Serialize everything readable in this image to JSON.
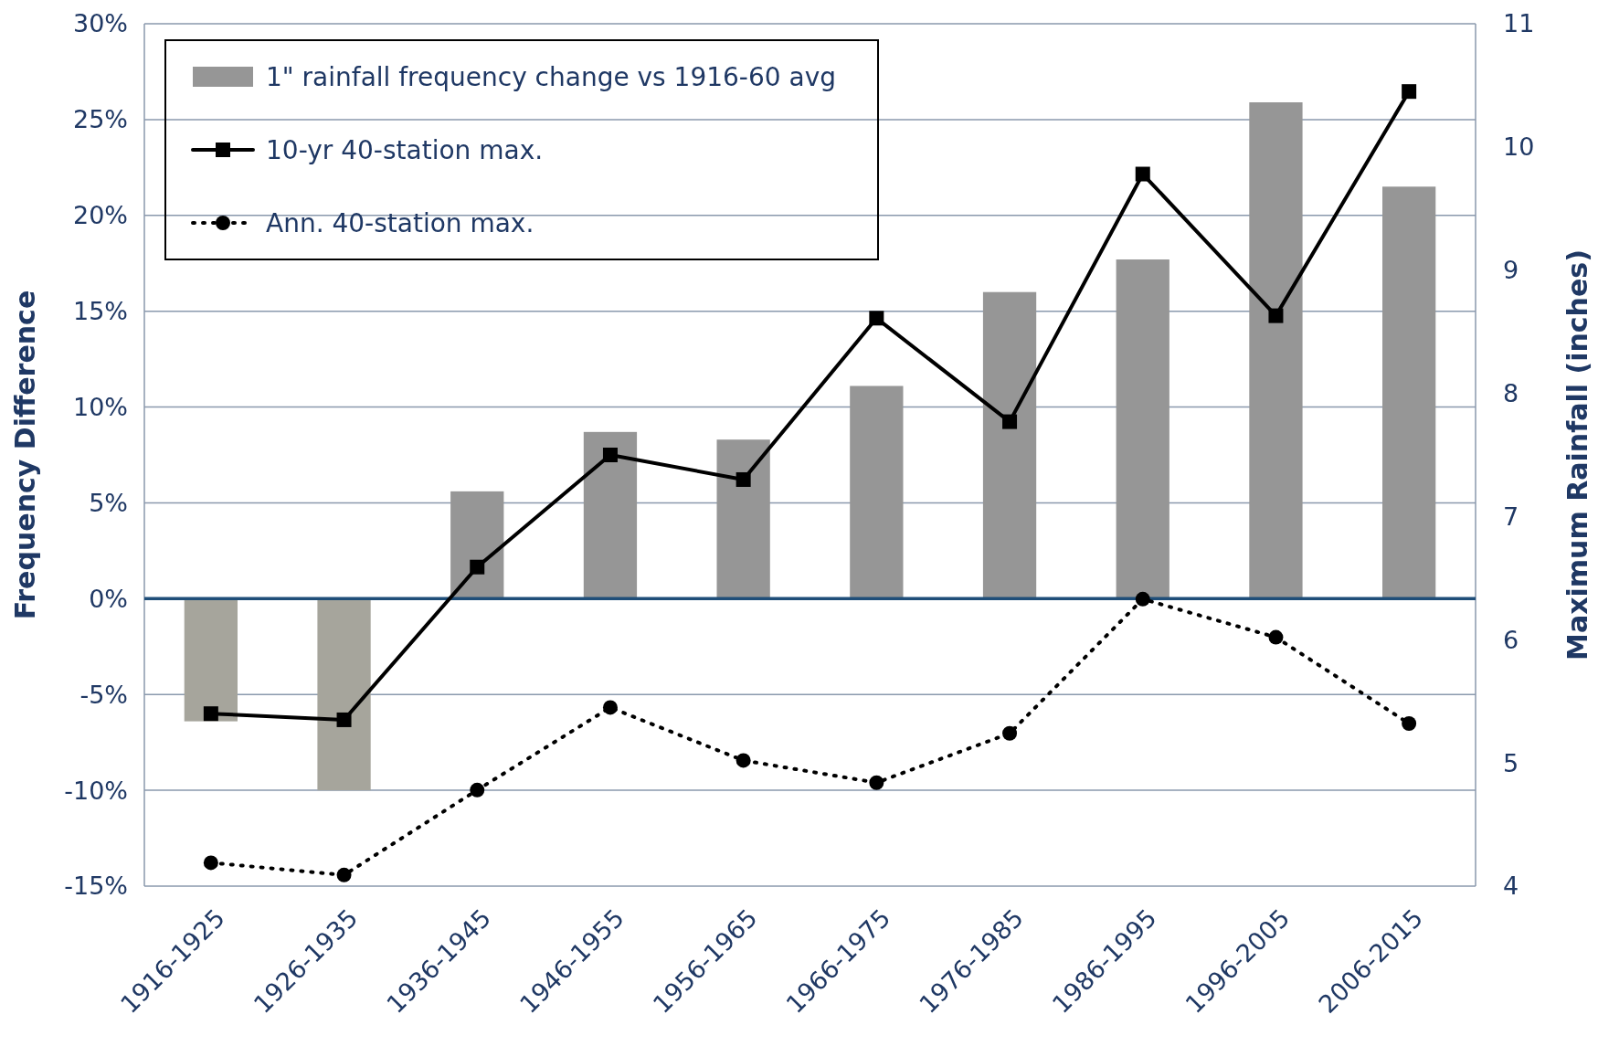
{
  "chart_data": {
    "type": "bar",
    "categories": [
      "1916-1925",
      "1926-1935",
      "1936-1945",
      "1946-1955",
      "1956-1965",
      "1966-1975",
      "1976-1985",
      "1986-1995",
      "1996-2005",
      "2006-2015"
    ],
    "ylabel": "Frequency Difference",
    "y2label": "Maximum Rainfall (inches)",
    "series": [
      {
        "name": "1\" rainfall frequency change vs 1916-60 avg",
        "color": "#969696",
        "colors": [
          "#a6a59c",
          "#a6a59c",
          "#969696",
          "#969696",
          "#969696",
          "#969696",
          "#969696",
          "#969696",
          "#969696",
          "#969696"
        ],
        "values": [
          -6.4,
          -10.0,
          5.6,
          8.7,
          8.3,
          11.1,
          16.0,
          17.7,
          25.9,
          21.5
        ]
      },
      {
        "name": "10-yr 40-station max.",
        "type": "line",
        "axis": "y2",
        "color": "#000000",
        "marker": "square",
        "line_style": "solid",
        "values": [
          5.4,
          5.35,
          6.59,
          7.5,
          7.3,
          8.61,
          7.77,
          9.78,
          8.63,
          10.45
        ]
      },
      {
        "name": "Ann. 40-station max.",
        "type": "line",
        "axis": "y2",
        "color": "#000000",
        "marker": "circle",
        "line_style": "dotted",
        "values": [
          4.19,
          4.09,
          4.78,
          5.45,
          5.02,
          4.84,
          5.24,
          6.33,
          6.02,
          5.32
        ]
      }
    ],
    "ylim": [
      -15,
      30
    ],
    "yticks": [
      {
        "value": -15,
        "label": "-15%"
      },
      {
        "value": -10,
        "label": "-10%"
      },
      {
        "value": -5,
        "label": "-5%"
      },
      {
        "value": 0,
        "label": "0%"
      },
      {
        "value": 5,
        "label": "5%"
      },
      {
        "value": 10,
        "label": "10%"
      },
      {
        "value": 15,
        "label": "15%"
      },
      {
        "value": 20,
        "label": "20%"
      },
      {
        "value": 25,
        "label": "25%"
      },
      {
        "value": 30,
        "label": "30%"
      }
    ],
    "y2lim": [
      4,
      11
    ],
    "y2ticks": [
      4,
      5,
      6,
      7,
      8,
      9,
      10,
      11
    ],
    "grid": "y",
    "legend": "top left",
    "ref_lines": [
      {
        "axis": "y",
        "value": 0,
        "color": "#1f4e79"
      }
    ]
  }
}
